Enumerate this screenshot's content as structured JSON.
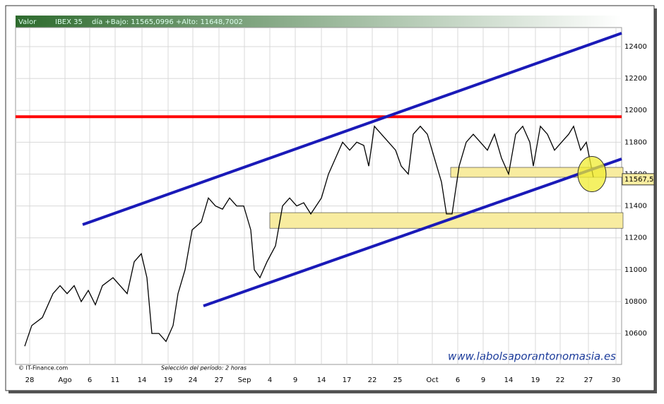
{
  "chart_data": {
    "type": "line",
    "header": {
      "label": "Valor",
      "symbol": "IBEX 35",
      "range": "día +Bajo: 11565,0996 +Alto: 11648,7002"
    },
    "source": "© IT-Finance.com",
    "period": "Selección del período: 2 horas",
    "watermark": "www.labolsaporantonomasia.es",
    "last_label": {
      "value": 11567.5,
      "label": "11567,5"
    },
    "xlim": [
      0,
      858
    ],
    "xticks": [
      {
        "value": 20,
        "label": "28"
      },
      {
        "value": 70,
        "label": "Ago"
      },
      {
        "value": 105,
        "label": "6"
      },
      {
        "value": 141,
        "label": "11"
      },
      {
        "value": 179,
        "label": "14"
      },
      {
        "value": 216,
        "label": "19"
      },
      {
        "value": 251,
        "label": "24"
      },
      {
        "value": 288,
        "label": "27"
      },
      {
        "value": 324,
        "label": "Sep"
      },
      {
        "value": 360,
        "label": "4"
      },
      {
        "value": 396,
        "label": "9"
      },
      {
        "value": 433,
        "label": "14"
      },
      {
        "value": 469,
        "label": "17"
      },
      {
        "value": 505,
        "label": "22"
      },
      {
        "value": 541,
        "label": "25"
      },
      {
        "value": 590,
        "label": "Oct"
      },
      {
        "value": 626,
        "label": "6"
      },
      {
        "value": 662,
        "label": "9"
      },
      {
        "value": 698,
        "label": "14"
      },
      {
        "value": 736,
        "label": "19"
      },
      {
        "value": 771,
        "label": "22"
      },
      {
        "value": 811,
        "label": "27"
      },
      {
        "value": 850,
        "label": "30"
      }
    ],
    "ylim": [
      10410,
      12515
    ],
    "yticks": [
      10600,
      10800,
      11000,
      11200,
      11400,
      11600,
      11800,
      12000,
      12200,
      12400
    ],
    "grid": true,
    "series": [
      {
        "color": "#000000",
        "x": [
          13,
          23,
          38,
          53,
          63,
          73,
          83,
          93,
          103,
          113,
          123,
          138,
          148,
          158,
          168,
          178,
          186,
          193,
          203,
          213,
          223,
          230,
          240,
          250,
          263,
          273,
          283,
          293,
          303,
          313,
          323,
          333,
          338,
          346,
          356,
          368,
          378,
          388,
          398,
          408,
          418,
          433,
          443,
          453,
          463,
          473,
          483,
          493,
          500,
          508,
          518,
          528,
          538,
          546,
          556,
          563,
          573,
          583,
          593,
          603,
          610,
          618,
          628,
          638,
          648,
          658,
          668,
          678,
          688,
          698,
          708,
          718,
          728,
          733,
          743,
          753,
          763,
          773,
          783,
          790,
          800,
          808,
          818
        ],
        "values": [
          10520,
          10650,
          10700,
          10850,
          10900,
          10850,
          10900,
          10800,
          10870,
          10780,
          10900,
          10950,
          10900,
          10850,
          11050,
          11100,
          10950,
          10600,
          10600,
          10550,
          10650,
          10850,
          11000,
          11250,
          11300,
          11450,
          11400,
          11380,
          11450,
          11400,
          11400,
          11250,
          11000,
          10950,
          11050,
          11150,
          11400,
          11450,
          11400,
          11420,
          11350,
          11450,
          11600,
          11700,
          11800,
          11750,
          11800,
          11780,
          11650,
          11900,
          11850,
          11800,
          11750,
          11650,
          11600,
          11850,
          11900,
          11850,
          11700,
          11550,
          11350,
          11350,
          11650,
          11800,
          11850,
          11800,
          11750,
          11850,
          11700,
          11600,
          11850,
          11900,
          11800,
          11650,
          11900,
          11850,
          11750,
          11800,
          11850,
          11900,
          11750,
          11800,
          11580
        ]
      }
    ],
    "resistance": {
      "color": "#ff0000",
      "value": 11960
    },
    "channel": [
      {
        "color": "#1a1ab8",
        "x": [
          95,
          858
        ],
        "values": [
          11283,
          12484
        ]
      },
      {
        "color": "#1a1ab8",
        "x": [
          266,
          858
        ],
        "values": [
          10773,
          11695
        ]
      }
    ],
    "zones": [
      {
        "color": "#f8eca0",
        "x": [
          360,
          860
        ],
        "values": [
          11260,
          11358
        ]
      },
      {
        "color": "#f8eca0",
        "x": [
          616,
          860
        ],
        "values": [
          11580,
          11642
        ]
      }
    ],
    "highlight": {
      "color": "#f0ec30",
      "x": 816,
      "value": 11600
    }
  }
}
